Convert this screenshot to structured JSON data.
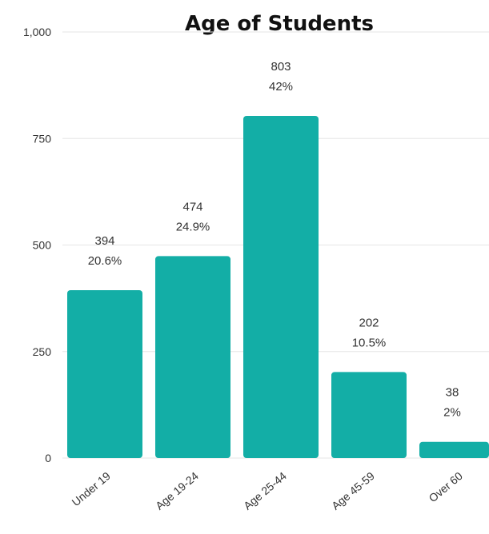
{
  "chart_data": {
    "type": "bar",
    "title": "Age of Students",
    "xlabel": "",
    "ylabel": "",
    "categories": [
      "Under 19",
      "Age 19-24",
      "Age 25-44",
      "Age 45-59",
      "Over 60"
    ],
    "values": [
      394,
      474,
      803,
      202,
      38
    ],
    "percent_labels": [
      "20.6%",
      "24.9%",
      "42%",
      "10.5%",
      "2%"
    ],
    "value_labels": [
      "394",
      "474",
      "803",
      "202",
      "38"
    ],
    "ylim": [
      0,
      1000
    ],
    "yticks": [
      0,
      250,
      500,
      750,
      1000
    ],
    "ytick_labels": [
      "0",
      "250",
      "500",
      "750",
      "1,000"
    ],
    "grid": true,
    "legend": "none",
    "bar_color": "#13aea6"
  }
}
